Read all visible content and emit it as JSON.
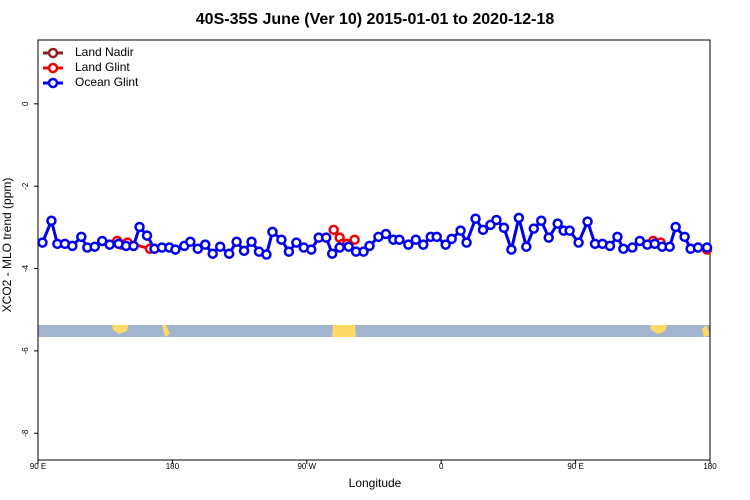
{
  "chart_data": {
    "type": "line",
    "title": "40S-35S June (Ver 10)   2015-01-01 to 2020-12-18",
    "x_label": "Longitude",
    "y_label": "XCO2 - MLO trend (ppm)",
    "xlim": [
      90,
      540
    ],
    "xticks": [
      {
        "value": 90,
        "label": "90 E"
      },
      180,
      {
        "value": 270,
        "label": "90 W"
      },
      {
        "value": 360,
        "label": "0"
      },
      {
        "value": 450,
        "label": "90 E"
      },
      {
        "value": 540,
        "label": "180"
      }
    ],
    "ylim": [
      -8.65,
      1.55
    ],
    "yticks": [
      0,
      -2,
      -4,
      -6,
      -8
    ],
    "legend": "top-left",
    "series": [
      {
        "name": "Land Nadir",
        "color": "#8b2323",
        "x": [],
        "values": []
      },
      {
        "name": "Land Glint",
        "color": "#ee0000",
        "x": [
          143,
          146,
          150,
          165,
          null,
          288,
          292,
          294,
          297,
          302,
          null,
          502,
          507,
          null,
          538
        ],
        "values": [
          -3.33,
          -3.42,
          -3.37,
          -3.52,
          null,
          -3.06,
          -3.25,
          -3.4,
          -3.4,
          -3.3,
          null,
          -3.33,
          -3.37,
          null,
          -3.54
        ]
      },
      {
        "name": "Ocean Glint",
        "color": "#0000ee",
        "x": [
          93,
          99,
          103,
          108,
          113,
          119,
          123,
          128,
          133,
          138,
          144,
          149,
          154,
          158,
          163,
          168,
          173,
          178,
          182,
          188,
          192,
          197,
          202,
          207,
          212,
          218,
          223,
          228,
          233,
          238,
          243,
          247,
          253,
          258,
          263,
          268,
          273,
          278,
          283,
          287,
          292,
          298,
          303,
          308,
          312,
          318,
          323,
          328,
          332,
          338,
          343,
          348,
          353,
          357,
          363,
          367,
          373,
          377,
          383,
          388,
          393,
          397,
          402,
          407,
          412,
          417,
          422,
          427,
          432,
          438,
          442,
          446,
          452,
          458,
          463,
          468,
          473,
          478,
          482,
          488,
          493,
          498,
          503,
          508,
          513,
          517,
          523,
          527,
          532,
          538
        ],
        "values": [
          -3.37,
          -2.84,
          -3.4,
          -3.4,
          -3.45,
          -3.23,
          -3.49,
          -3.47,
          -3.33,
          -3.42,
          -3.4,
          -3.45,
          -3.45,
          -2.99,
          -3.2,
          -3.52,
          -3.49,
          -3.49,
          -3.54,
          -3.45,
          -3.35,
          -3.52,
          -3.42,
          -3.64,
          -3.47,
          -3.64,
          -3.35,
          -3.57,
          -3.35,
          -3.59,
          -3.66,
          -3.11,
          -3.3,
          -3.59,
          -3.37,
          -3.49,
          -3.54,
          -3.25,
          -3.25,
          -3.64,
          -3.49,
          -3.47,
          -3.59,
          -3.59,
          -3.45,
          -3.23,
          -3.16,
          -3.3,
          -3.3,
          -3.42,
          -3.3,
          -3.42,
          -3.23,
          -3.23,
          -3.42,
          -3.28,
          -3.08,
          -3.37,
          -2.79,
          -3.06,
          -2.94,
          -2.82,
          -3.01,
          -3.54,
          -2.77,
          -3.47,
          -3.03,
          -2.84,
          -3.25,
          -2.91,
          -3.08,
          -3.08,
          -3.37,
          -2.86,
          -3.4,
          -3.4,
          -3.45,
          -3.23,
          -3.52,
          -3.49,
          -3.33,
          -3.42,
          -3.4,
          -3.47,
          -3.47,
          -2.99,
          -3.23,
          -3.52,
          -3.49,
          -3.49
        ]
      }
    ]
  }
}
